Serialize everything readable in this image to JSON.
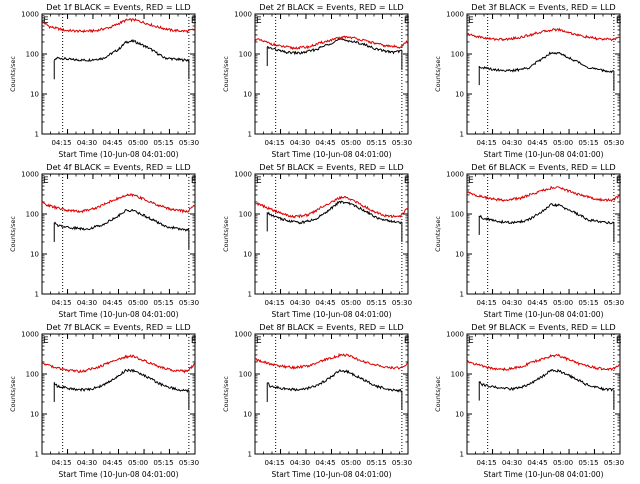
{
  "chart_data": [
    {
      "type": "line",
      "title": "Det 1f BLACK = Events, RED = LLD",
      "xlabel": "Start Time (10-Jun-08 04:01:00)",
      "ylabel": "Counts/sec",
      "yscale": "log",
      "ylim": [
        1,
        1000
      ],
      "xlim": [
        0,
        100
      ],
      "x_ticks": [
        "04:15",
        "04:30",
        "04:45",
        "05:00",
        "05:15",
        "05:30"
      ],
      "x_tick_pos": [
        16.7,
        33.3,
        50,
        66.7,
        83.3,
        100
      ],
      "vlines": [
        13.5,
        96
      ],
      "marker": "E",
      "series": [
        {
          "color": "#000000",
          "x": [
            8,
            10,
            20,
            30,
            40,
            50,
            55,
            60,
            70,
            80,
            90,
            96
          ],
          "values": [
            70,
            80,
            72,
            70,
            78,
            130,
            200,
            210,
            140,
            80,
            72,
            70
          ]
        },
        {
          "color": "#dd0000",
          "x": [
            0,
            5,
            15,
            25,
            35,
            45,
            55,
            60,
            65,
            75,
            85,
            95,
            100
          ],
          "values": [
            650,
            480,
            390,
            370,
            380,
            470,
            700,
            720,
            640,
            480,
            390,
            370,
            420
          ]
        }
      ]
    },
    {
      "type": "line",
      "title": "Det 2f BLACK = Events, RED = LLD",
      "xlabel": "Start Time (10-Jun-08 04:01:00)",
      "ylabel": "Counts/sec",
      "yscale": "log",
      "ylim": [
        1,
        1000
      ],
      "xlim": [
        0,
        100
      ],
      "x_ticks": [
        "04:15",
        "04:30",
        "04:45",
        "05:00",
        "05:15",
        "05:30"
      ],
      "x_tick_pos": [
        16.7,
        33.3,
        50,
        66.7,
        83.3,
        100
      ],
      "vlines": [
        13.5,
        96
      ],
      "marker": "E",
      "series": [
        {
          "color": "#000000",
          "x": [
            8,
            10,
            20,
            30,
            40,
            50,
            55,
            60,
            70,
            80,
            90,
            96
          ],
          "values": [
            150,
            140,
            110,
            105,
            130,
            190,
            230,
            220,
            180,
            130,
            110,
            120
          ]
        },
        {
          "color": "#dd0000",
          "x": [
            0,
            5,
            15,
            25,
            35,
            45,
            55,
            60,
            65,
            75,
            85,
            95,
            100
          ],
          "values": [
            240,
            210,
            160,
            140,
            150,
            200,
            250,
            270,
            250,
            200,
            160,
            150,
            210
          ]
        }
      ]
    },
    {
      "type": "line",
      "title": "Det 3f BLACK = Events, RED = LLD",
      "xlabel": "Start Time (10-Jun-08 04:01:00)",
      "ylabel": "Counts/sec",
      "yscale": "log",
      "ylim": [
        1,
        1000
      ],
      "xlim": [
        0,
        100
      ],
      "x_ticks": [
        "04:15",
        "04:30",
        "04:45",
        "05:00",
        "05:15",
        "05:30"
      ],
      "x_tick_pos": [
        16.7,
        33.3,
        50,
        66.7,
        83.3,
        100
      ],
      "vlines": [
        13.5,
        96
      ],
      "marker": "E",
      "series": [
        {
          "color": "#000000",
          "x": [
            8,
            10,
            20,
            30,
            40,
            50,
            55,
            60,
            70,
            80,
            90,
            96
          ],
          "values": [
            50,
            45,
            40,
            38,
            45,
            80,
            110,
            105,
            70,
            45,
            38,
            36
          ]
        },
        {
          "color": "#dd0000",
          "x": [
            0,
            5,
            15,
            25,
            35,
            45,
            55,
            60,
            65,
            75,
            85,
            95,
            100
          ],
          "values": [
            320,
            280,
            240,
            230,
            260,
            330,
            400,
            410,
            360,
            280,
            240,
            230,
            260
          ]
        }
      ]
    },
    {
      "type": "line",
      "title": "Det 4f BLACK = Events, RED = LLD",
      "xlabel": "Start Time (10-Jun-08 04:01:00)",
      "ylabel": "Counts/sec",
      "yscale": "log",
      "ylim": [
        1,
        1000
      ],
      "xlim": [
        0,
        100
      ],
      "x_ticks": [
        "04:15",
        "04:30",
        "04:45",
        "05:00",
        "05:15",
        "05:30"
      ],
      "x_tick_pos": [
        16.7,
        33.3,
        50,
        66.7,
        83.3,
        100
      ],
      "vlines": [
        13.5,
        96
      ],
      "marker": "E",
      "series": [
        {
          "color": "#000000",
          "x": [
            8,
            10,
            20,
            30,
            40,
            50,
            55,
            60,
            70,
            80,
            90,
            96
          ],
          "values": [
            60,
            52,
            45,
            42,
            55,
            90,
            125,
            120,
            80,
            50,
            42,
            40
          ]
        },
        {
          "color": "#dd0000",
          "x": [
            0,
            5,
            15,
            25,
            35,
            45,
            55,
            60,
            65,
            75,
            85,
            95,
            100
          ],
          "values": [
            190,
            160,
            125,
            115,
            140,
            210,
            290,
            300,
            250,
            170,
            130,
            115,
            170
          ]
        }
      ]
    },
    {
      "type": "line",
      "title": "Det 5f BLACK = Events, RED = LLD",
      "xlabel": "Start Time (10-Jun-08 04:01:00)",
      "ylabel": "Counts/sec",
      "yscale": "log",
      "ylim": [
        1,
        1000
      ],
      "xlim": [
        0,
        100
      ],
      "x_ticks": [
        "04:15",
        "04:30",
        "04:45",
        "05:00",
        "05:15",
        "05:30"
      ],
      "x_tick_pos": [
        16.7,
        33.3,
        50,
        66.7,
        83.3,
        100
      ],
      "vlines": [
        13.5,
        96
      ],
      "marker": "E",
      "series": [
        {
          "color": "#000000",
          "x": [
            8,
            10,
            20,
            30,
            40,
            50,
            55,
            60,
            70,
            80,
            90,
            96
          ],
          "values": [
            110,
            95,
            70,
            60,
            75,
            140,
            200,
            195,
            130,
            80,
            65,
            60
          ]
        },
        {
          "color": "#dd0000",
          "x": [
            0,
            5,
            15,
            25,
            35,
            45,
            55,
            60,
            65,
            75,
            85,
            95,
            100
          ],
          "values": [
            190,
            160,
            110,
            85,
            95,
            160,
            250,
            260,
            210,
            130,
            90,
            85,
            150
          ]
        }
      ]
    },
    {
      "type": "line",
      "title": "Det 6f BLACK = Events, RED = LLD",
      "xlabel": "Start Time (10-Jun-08 04:01:00)",
      "ylabel": "Counts/sec",
      "yscale": "log",
      "ylim": [
        1,
        1000
      ],
      "xlim": [
        0,
        100
      ],
      "x_ticks": [
        "04:15",
        "04:30",
        "04:45",
        "05:00",
        "05:15",
        "05:30"
      ],
      "x_tick_pos": [
        16.7,
        33.3,
        50,
        66.7,
        83.3,
        100
      ],
      "vlines": [
        13.5,
        96
      ],
      "marker": "E",
      "series": [
        {
          "color": "#000000",
          "x": [
            8,
            10,
            20,
            30,
            40,
            50,
            55,
            60,
            70,
            80,
            90,
            96
          ],
          "values": [
            90,
            80,
            65,
            60,
            70,
            120,
            170,
            165,
            110,
            70,
            62,
            60
          ]
        },
        {
          "color": "#dd0000",
          "x": [
            0,
            5,
            15,
            25,
            35,
            45,
            55,
            60,
            65,
            75,
            85,
            95,
            100
          ],
          "values": [
            350,
            300,
            240,
            220,
            250,
            340,
            450,
            460,
            390,
            290,
            230,
            220,
            290
          ]
        }
      ]
    },
    {
      "type": "line",
      "title": "Det 7f BLACK = Events, RED = LLD",
      "xlabel": "Start Time (10-Jun-08 04:01:00)",
      "ylabel": "Counts/sec",
      "yscale": "log",
      "ylim": [
        1,
        1000
      ],
      "xlim": [
        0,
        100
      ],
      "x_ticks": [
        "04:15",
        "04:30",
        "04:45",
        "05:00",
        "05:15",
        "05:30"
      ],
      "x_tick_pos": [
        16.7,
        33.3,
        50,
        66.7,
        83.3,
        100
      ],
      "vlines": [
        13.5,
        96
      ],
      "marker": "E",
      "series": [
        {
          "color": "#000000",
          "x": [
            8,
            10,
            20,
            30,
            40,
            50,
            55,
            60,
            70,
            80,
            90,
            96
          ],
          "values": [
            60,
            50,
            42,
            40,
            52,
            90,
            125,
            120,
            80,
            50,
            40,
            38
          ]
        },
        {
          "color": "#dd0000",
          "x": [
            0,
            5,
            15,
            25,
            35,
            45,
            55,
            60,
            65,
            75,
            85,
            95,
            100
          ],
          "values": [
            190,
            160,
            125,
            115,
            140,
            200,
            270,
            280,
            230,
            160,
            125,
            115,
            180
          ]
        }
      ]
    },
    {
      "type": "line",
      "title": "Det 8f BLACK = Events, RED = LLD",
      "xlabel": "Start Time (10-Jun-08 04:01:00)",
      "ylabel": "Counts/sec",
      "yscale": "log",
      "ylim": [
        1,
        1000
      ],
      "xlim": [
        0,
        100
      ],
      "x_ticks": [
        "04:15",
        "04:30",
        "04:45",
        "05:00",
        "05:15",
        "05:30"
      ],
      "x_tick_pos": [
        16.7,
        33.3,
        50,
        66.7,
        83.3,
        100
      ],
      "vlines": [
        13.5,
        96
      ],
      "marker": "E",
      "series": [
        {
          "color": "#000000",
          "x": [
            8,
            10,
            20,
            30,
            40,
            50,
            55,
            60,
            70,
            80,
            90,
            96
          ],
          "values": [
            60,
            50,
            42,
            40,
            50,
            85,
            120,
            115,
            75,
            48,
            40,
            38
          ]
        },
        {
          "color": "#dd0000",
          "x": [
            0,
            5,
            15,
            25,
            35,
            45,
            55,
            60,
            65,
            75,
            85,
            95,
            100
          ],
          "values": [
            230,
            200,
            160,
            145,
            160,
            220,
            290,
            300,
            250,
            180,
            150,
            140,
            180
          ]
        }
      ]
    },
    {
      "type": "line",
      "title": "Det 9f BLACK = Events, RED = LLD",
      "xlabel": "Start Time (10-Jun-08 04:01:00)",
      "ylabel": "Counts/sec",
      "yscale": "log",
      "ylim": [
        1,
        1000
      ],
      "xlim": [
        0,
        100
      ],
      "x_ticks": [
        "04:15",
        "04:30",
        "04:45",
        "05:00",
        "05:15",
        "05:30"
      ],
      "x_tick_pos": [
        16.7,
        33.3,
        50,
        66.7,
        83.3,
        100
      ],
      "vlines": [
        13.5,
        96
      ],
      "marker": "E",
      "series": [
        {
          "color": "#000000",
          "x": [
            8,
            10,
            20,
            30,
            40,
            50,
            55,
            60,
            70,
            80,
            90,
            96
          ],
          "values": [
            65,
            55,
            45,
            42,
            52,
            90,
            125,
            120,
            80,
            50,
            42,
            40
          ]
        },
        {
          "color": "#dd0000",
          "x": [
            0,
            5,
            15,
            25,
            35,
            45,
            55,
            60,
            65,
            75,
            85,
            95,
            100
          ],
          "values": [
            210,
            180,
            140,
            130,
            150,
            210,
            280,
            290,
            240,
            170,
            140,
            130,
            170
          ]
        }
      ]
    }
  ]
}
